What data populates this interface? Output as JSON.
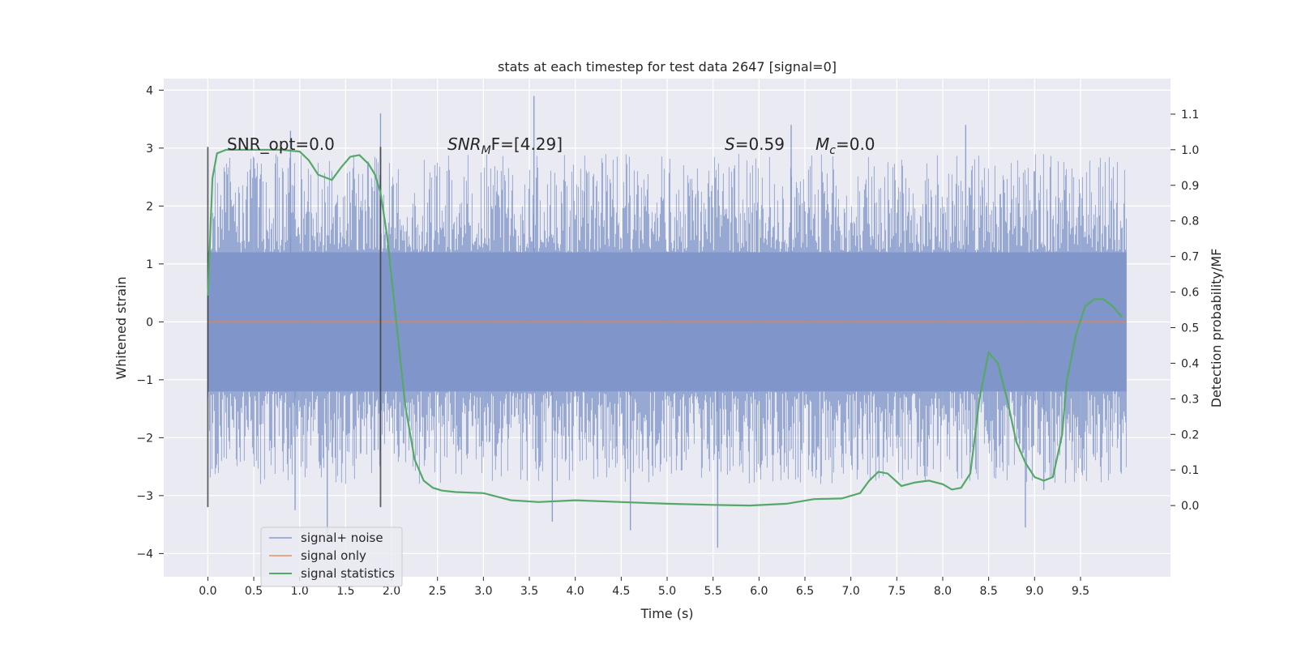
{
  "chart_data": {
    "type": "line",
    "title": "stats at each timestep for test data 2647 [signal=0]",
    "xlabel": "Time (s)",
    "ylabel": "Whitened strain",
    "y2label": "Detection probability/MF",
    "xlim": [
      -0.48,
      10.48
    ],
    "ylim": [
      -4.4,
      4.2
    ],
    "y2lim": [
      -0.2,
      1.2
    ],
    "x_ticks": [
      "0.0",
      "0.5",
      "1.0",
      "1.5",
      "2.0",
      "2.5",
      "3.0",
      "3.5",
      "4.0",
      "4.5",
      "5.0",
      "5.5",
      "6.0",
      "6.5",
      "7.0",
      "7.5",
      "8.0",
      "8.5",
      "9.0",
      "9.5"
    ],
    "y_ticks": [
      "4",
      "3",
      "2",
      "1",
      "0",
      "−1",
      "−2",
      "−3",
      "−4"
    ],
    "y2_ticks": [
      "1.1",
      "1.0",
      "0.9",
      "0.8",
      "0.7",
      "0.6",
      "0.5",
      "0.4",
      "0.3",
      "0.2",
      "0.1",
      "0.0"
    ],
    "grid": true,
    "legend_position": "lower-left",
    "annotations": {
      "snr_opt": "SNR_opt=0.0",
      "snr_mf_main": "SNR",
      "snr_mf_sub": "M",
      "snr_mf_rest": "F=[4.29]",
      "s_italic": "S",
      "s_rest": "=0.59",
      "mc_main": "M",
      "mc_sub": "c",
      "mc_rest": "=0.0"
    },
    "markers": {
      "x": [
        0.0,
        1.88
      ],
      "y_range": [
        -3.2,
        3.02
      ]
    },
    "series": [
      {
        "name": "signal+ noise",
        "color": "#7b92c8",
        "style": "noise-band",
        "x_range": [
          0.0,
          10.0
        ],
        "core_range": [
          -1.2,
          1.2
        ],
        "typical_range": [
          -2.2,
          2.3
        ],
        "extremes": [
          {
            "x": 3.55,
            "y": 3.9
          },
          {
            "x": 1.88,
            "y": 3.6
          },
          {
            "x": 8.25,
            "y": 3.4
          },
          {
            "x": 5.55,
            "y": -3.9
          },
          {
            "x": 1.3,
            "y": -3.7
          },
          {
            "x": 4.6,
            "y": -3.6
          },
          {
            "x": 8.9,
            "y": -3.55
          },
          {
            "x": 3.75,
            "y": -3.45
          },
          {
            "x": 0.95,
            "y": -3.25
          },
          {
            "x": 6.35,
            "y": 3.4
          },
          {
            "x": 0.9,
            "y": 3.3
          },
          {
            "x": 9.1,
            "y": -2.9
          }
        ]
      },
      {
        "name": "signal only",
        "color": "#dd8452",
        "x": [
          0.0,
          10.0
        ],
        "y": [
          0.0,
          0.0
        ]
      },
      {
        "name": "signal statistics",
        "color": "#55a868",
        "axis": "right",
        "x": [
          0.0,
          0.05,
          0.1,
          0.15,
          0.2,
          0.3,
          0.5,
          0.8,
          1.0,
          1.1,
          1.2,
          1.3,
          1.35,
          1.45,
          1.55,
          1.65,
          1.75,
          1.82,
          1.88,
          1.95,
          2.05,
          2.15,
          2.25,
          2.35,
          2.45,
          2.55,
          2.7,
          3.0,
          3.3,
          3.6,
          4.0,
          4.5,
          5.0,
          5.5,
          5.9,
          6.3,
          6.6,
          6.9,
          7.1,
          7.2,
          7.3,
          7.4,
          7.55,
          7.7,
          7.85,
          8.0,
          8.1,
          8.2,
          8.3,
          8.4,
          8.5,
          8.6,
          8.7,
          8.8,
          8.9,
          9.0,
          9.1,
          9.2,
          9.3,
          9.35,
          9.45,
          9.55,
          9.65,
          9.75,
          9.85,
          9.95
        ],
        "y": [
          0.59,
          0.92,
          0.99,
          0.995,
          1.0,
          1.0,
          1.0,
          1.0,
          0.995,
          0.97,
          0.93,
          0.92,
          0.915,
          0.95,
          0.98,
          0.985,
          0.96,
          0.93,
          0.88,
          0.76,
          0.52,
          0.28,
          0.13,
          0.07,
          0.05,
          0.042,
          0.038,
          0.035,
          0.015,
          0.01,
          0.015,
          0.01,
          0.005,
          0.002,
          0.0,
          0.005,
          0.018,
          0.02,
          0.035,
          0.07,
          0.095,
          0.09,
          0.055,
          0.065,
          0.07,
          0.06,
          0.045,
          0.05,
          0.09,
          0.3,
          0.43,
          0.4,
          0.3,
          0.18,
          0.12,
          0.08,
          0.07,
          0.08,
          0.2,
          0.35,
          0.48,
          0.56,
          0.58,
          0.58,
          0.56,
          0.53
        ]
      }
    ]
  }
}
